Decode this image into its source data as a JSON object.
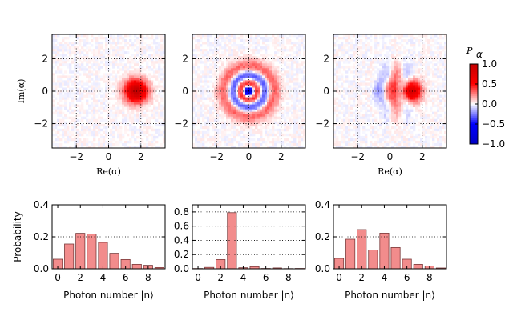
{
  "chart_data": {
    "colorbar": {
      "label_symbol": "P",
      "label_subscript": "α",
      "ticks": [
        "1.0",
        "0.5",
        "0.0",
        "−0.5",
        "−1.0"
      ],
      "tick_values": [
        1.0,
        0.5,
        0.0,
        -0.5,
        -1.0
      ],
      "range": [
        -1.0,
        1.0
      ]
    },
    "phase_space": [
      {
        "type": "heatmap",
        "state": "coherent",
        "xlabel": "Re(α)",
        "ylabel": "Im(α)",
        "xlim": [
          -3.5,
          3.5
        ],
        "ylim": [
          -3.5,
          3.5
        ],
        "xticks": [
          -2,
          0,
          2
        ],
        "xtick_labels": [
          "−2",
          "0",
          "2"
        ],
        "yticks": [
          2,
          0,
          -2
        ],
        "ytick_labels": [
          "2",
          "0",
          "−2"
        ],
        "center": [
          1.7,
          0.0
        ],
        "peak": 1.0,
        "grid": "dotted"
      },
      {
        "type": "heatmap",
        "state": "fock n=3",
        "xlabel": "",
        "ylabel": "",
        "xlim": [
          -3.5,
          3.5
        ],
        "ylim": [
          -3.5,
          3.5
        ],
        "xticks": [
          -2,
          0,
          2
        ],
        "xtick_labels": [
          "−2",
          "0",
          "2"
        ],
        "yticks": [
          2,
          0,
          -2
        ],
        "ytick_labels": [
          "2",
          "0",
          "−2"
        ],
        "center": [
          0,
          0
        ],
        "grid": "dotted"
      },
      {
        "type": "heatmap",
        "state": "superposition",
        "xlabel": "Re(α)",
        "ylabel": "",
        "xlim": [
          -3.5,
          3.5
        ],
        "ylim": [
          -3.5,
          3.5
        ],
        "xticks": [
          -2,
          0,
          2
        ],
        "xtick_labels": [
          "−2",
          "0",
          "2"
        ],
        "yticks": [
          2,
          0,
          -2
        ],
        "ytick_labels": [
          "2",
          "0",
          "−2"
        ],
        "center": [
          1.3,
          0.0
        ],
        "grid": "dotted"
      }
    ],
    "distributions": [
      {
        "type": "bar",
        "xlabel": "Photon number |n⟩",
        "ylabel": "Probability",
        "categories": [
          0,
          1,
          2,
          3,
          4,
          5,
          6,
          7,
          8,
          9
        ],
        "values": [
          0.06,
          0.155,
          0.222,
          0.218,
          0.165,
          0.097,
          0.058,
          0.028,
          0.022,
          0.008
        ],
        "ylim": [
          0,
          0.4
        ],
        "yticks": [
          0.0,
          0.2,
          0.4
        ],
        "ytick_labels": [
          "0.0",
          "0.2",
          "0.4"
        ],
        "xticks": [
          0,
          2,
          4,
          6,
          8
        ],
        "xtick_labels": [
          "0",
          "2",
          "4",
          "6",
          "8"
        ]
      },
      {
        "type": "bar",
        "xlabel": "Photon number |n⟩",
        "ylabel": "",
        "categories": [
          0,
          1,
          2,
          3,
          4,
          5,
          6,
          7,
          8,
          9
        ],
        "values": [
          0.004,
          0.02,
          0.13,
          0.79,
          0.015,
          0.03,
          0.005,
          0.012,
          0.003,
          0.005
        ],
        "ylim": [
          0,
          0.9
        ],
        "yticks": [
          0.0,
          0.2,
          0.4,
          0.6,
          0.8
        ],
        "ytick_labels": [
          "0.0",
          "0.2",
          "0.4",
          "0.6",
          "0.8"
        ],
        "xticks": [
          0,
          2,
          4,
          6,
          8
        ],
        "xtick_labels": [
          "0",
          "2",
          "4",
          "6",
          "8"
        ]
      },
      {
        "type": "bar",
        "xlabel": "Photon number |n⟩",
        "ylabel": "",
        "categories": [
          0,
          1,
          2,
          3,
          4,
          5,
          6,
          7,
          8,
          9
        ],
        "values": [
          0.065,
          0.185,
          0.245,
          0.117,
          0.223,
          0.133,
          0.06,
          0.028,
          0.018,
          0.005
        ],
        "ylim": [
          0,
          0.4
        ],
        "yticks": [
          0.0,
          0.2,
          0.4
        ],
        "ytick_labels": [
          "0.0",
          "0.2",
          "0.4"
        ],
        "xticks": [
          0,
          2,
          4,
          6,
          8
        ],
        "xtick_labels": [
          "0",
          "2",
          "4",
          "6",
          "8"
        ]
      }
    ]
  }
}
